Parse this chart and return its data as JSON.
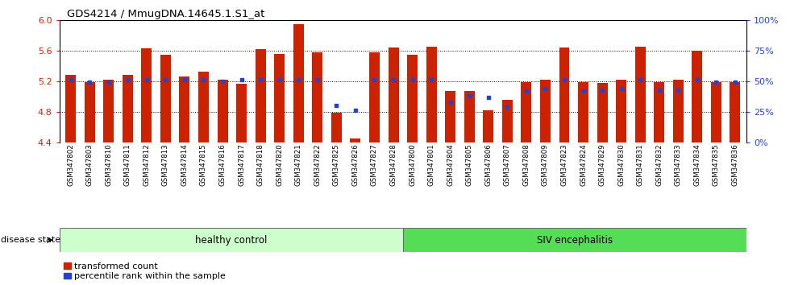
{
  "title": "GDS4214 / MmugDNA.14645.1.S1_at",
  "samples": [
    "GSM347802",
    "GSM347803",
    "GSM347810",
    "GSM347811",
    "GSM347812",
    "GSM347813",
    "GSM347814",
    "GSM347815",
    "GSM347816",
    "GSM347817",
    "GSM347818",
    "GSM347820",
    "GSM347821",
    "GSM347822",
    "GSM347825",
    "GSM347826",
    "GSM347827",
    "GSM347828",
    "GSM347800",
    "GSM347801",
    "GSM347804",
    "GSM347805",
    "GSM347806",
    "GSM347807",
    "GSM347808",
    "GSM347809",
    "GSM347823",
    "GSM347824",
    "GSM347829",
    "GSM347830",
    "GSM347831",
    "GSM347832",
    "GSM347833",
    "GSM347834",
    "GSM347835",
    "GSM347836"
  ],
  "bar_values": [
    5.28,
    5.19,
    5.22,
    5.28,
    5.63,
    5.55,
    5.26,
    5.32,
    5.22,
    5.17,
    5.62,
    5.56,
    5.94,
    5.58,
    4.79,
    4.45,
    5.58,
    5.64,
    5.55,
    5.65,
    5.07,
    5.07,
    4.82,
    4.96,
    5.19,
    5.22,
    5.64,
    5.19,
    5.18,
    5.22,
    5.65,
    5.19,
    5.22,
    5.6,
    5.19,
    5.19
  ],
  "percentile_values": [
    51,
    49,
    49,
    51,
    51,
    51,
    51,
    51,
    50,
    51,
    51,
    51,
    51,
    51,
    30,
    26,
    51,
    51,
    51,
    51,
    33,
    38,
    37,
    29,
    42,
    44,
    51,
    42,
    43,
    44,
    51,
    43,
    43,
    51,
    49,
    49
  ],
  "group1_count": 18,
  "group1_label": "healthy control",
  "group2_label": "SIV encephalitis",
  "bar_color": "#cc2200",
  "marker_color": "#2244cc",
  "ymin": 4.4,
  "ymax": 6.0,
  "yticks": [
    4.4,
    4.8,
    5.2,
    5.6,
    6.0
  ],
  "right_yticks": [
    0,
    25,
    50,
    75,
    100
  ],
  "right_yticklabels": [
    "0%",
    "25%",
    "50%",
    "75%",
    "100%"
  ],
  "legend_items": [
    "transformed count",
    "percentile rank within the sample"
  ],
  "group_bg_color1": "#ccffcc",
  "group_bg_color2": "#55dd55",
  "tick_label_color_left": "#cc2200",
  "tick_label_color_right": "#2244cc",
  "grid_lines": [
    4.8,
    5.2,
    5.6
  ]
}
